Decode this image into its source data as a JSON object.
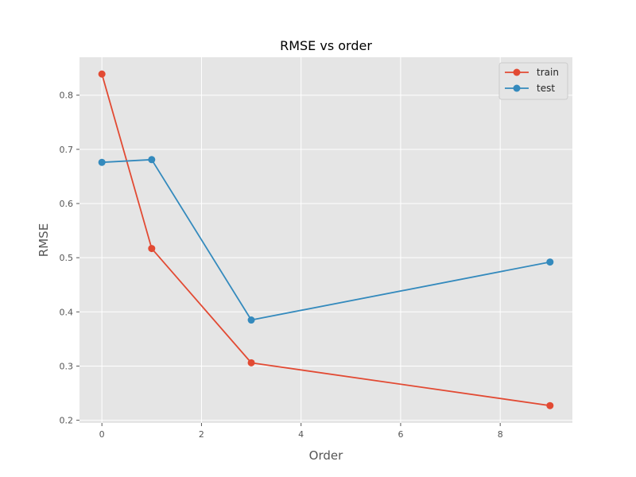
{
  "chart_data": {
    "type": "line",
    "title": "RMSE vs order",
    "xlabel": "Order",
    "ylabel": "RMSE",
    "xlim": [
      -0.45,
      9.45
    ],
    "ylim": [
      0.195,
      0.87
    ],
    "xticks": [
      0,
      2,
      4,
      6,
      8
    ],
    "yticks": [
      0.2,
      0.3,
      0.4,
      0.5,
      0.6,
      0.7,
      0.8
    ],
    "grid": true,
    "legend_position": "top-right",
    "x": [
      0,
      1,
      3,
      9
    ],
    "series": [
      {
        "name": "train",
        "color": "#E24A33",
        "values": [
          0.839,
          0.517,
          0.306,
          0.227
        ]
      },
      {
        "name": "test",
        "color": "#348ABD",
        "values": [
          0.676,
          0.681,
          0.385,
          0.492
        ]
      }
    ]
  },
  "style": {
    "plot_background": "#E5E5E5",
    "grid_color": "#FFFFFF",
    "text_color": "#555555"
  }
}
